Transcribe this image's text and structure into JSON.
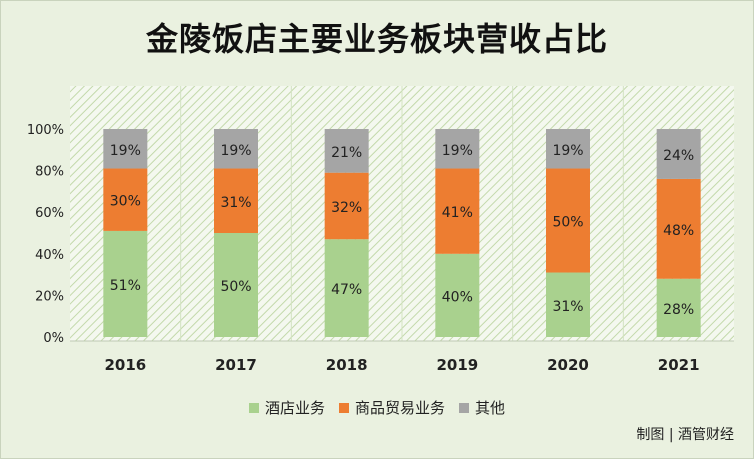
{
  "chart_data": {
    "type": "bar",
    "stacked": true,
    "title": "金陵饭店主要业务板块营收占比",
    "categories": [
      "2016",
      "2017",
      "2018",
      "2019",
      "2020",
      "2021"
    ],
    "series": [
      {
        "name": "酒店业务",
        "color": "#a9d18e",
        "values": [
          51,
          50,
          47,
          40,
          31,
          28
        ]
      },
      {
        "name": "商品贸易业务",
        "color": "#ed7d31",
        "values": [
          30,
          31,
          32,
          41,
          50,
          48
        ]
      },
      {
        "name": "其他",
        "color": "#a5a5a5",
        "values": [
          19,
          19,
          21,
          19,
          19,
          24
        ]
      }
    ],
    "yticks": [
      "0%",
      "20%",
      "40%",
      "60%",
      "80%",
      "100%"
    ],
    "ylim": [
      0,
      100
    ],
    "value_suffix": "%",
    "legend": "bottom",
    "plot_background": "hatched-green"
  },
  "credit": "制图 | 酒管财经"
}
